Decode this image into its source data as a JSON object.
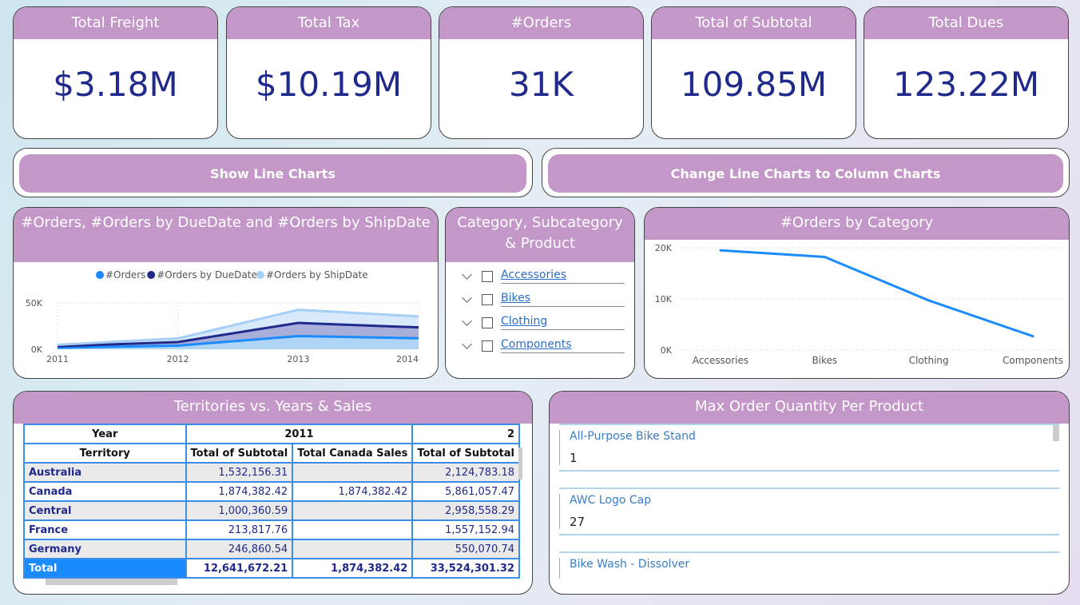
{
  "kpis": [
    {
      "label": "Total Freight",
      "value": "$3.18M"
    },
    {
      "label": "Total Tax",
      "value": "$10.19M"
    },
    {
      "label": "#Orders",
      "value": "31K"
    },
    {
      "label": "Total of Subtotal",
      "value": "109.85M"
    },
    {
      "label": "Total Dues",
      "value": "123.22M"
    }
  ],
  "buttons": {
    "show_line": "Show Line Charts",
    "change_line": "Change Line Charts to Column Charts"
  },
  "area_chart": {
    "title": "#Orders, #Orders by DueDate and #Orders by ShipDate"
  },
  "slicer": {
    "title": "Category, Subcategory & Product",
    "items": [
      "Accessories",
      "Bikes",
      "Clothing",
      "Components"
    ]
  },
  "category_chart": {
    "title": "#Orders by Category"
  },
  "chart_data": [
    {
      "type": "area",
      "stacked": true,
      "x": [
        "2011",
        "2012",
        "2013",
        "2014"
      ],
      "yticks": [
        "0K",
        "50K"
      ],
      "ylim": [
        0,
        55000
      ],
      "legend": "top",
      "series": [
        {
          "name": "#Orders",
          "color": "#1a8cff",
          "values": [
            1600,
            3900,
            14200,
            11800
          ]
        },
        {
          "name": "#Orders by DueDate",
          "color": "#1f2a8c",
          "values": [
            1600,
            3900,
            14200,
            11800
          ]
        },
        {
          "name": "#Orders by ShipDate",
          "color": "#a6cff5",
          "values": [
            1600,
            3900,
            14200,
            11800
          ]
        }
      ]
    },
    {
      "type": "line",
      "categories": [
        "Accessories",
        "Bikes",
        "Clothing",
        "Components"
      ],
      "values": [
        19500,
        18200,
        9700,
        2700
      ],
      "yticks": [
        "0K",
        "10K",
        "20K"
      ],
      "ylim": [
        0,
        20000
      ],
      "color": "#1a8cff"
    }
  ],
  "matrix": {
    "title": "Territories vs. Years & Sales",
    "year_label": "Year",
    "year": "2011",
    "year_next": "2",
    "territory_label": "Territory",
    "cols": [
      "Total of Subtotal",
      "Total Canada Sales",
      "Total of Subtotal"
    ],
    "rows": [
      {
        "t": "Australia",
        "v": [
          "1,532,156.31",
          "",
          "2,124,783.18"
        ]
      },
      {
        "t": "Canada",
        "v": [
          "1,874,382.42",
          "1,874,382.42",
          "5,861,057.47"
        ]
      },
      {
        "t": "Central",
        "v": [
          "1,000,360.59",
          "",
          "2,958,558.29"
        ]
      },
      {
        "t": "France",
        "v": [
          "213,817.76",
          "",
          "1,557,152.94"
        ]
      },
      {
        "t": "Germany",
        "v": [
          "246,860.54",
          "",
          "550,070.74"
        ]
      }
    ],
    "total": {
      "t": "Total",
      "v": [
        "12,641,672.21",
        "1,874,382.42",
        "33,524,301.32"
      ]
    }
  },
  "maxorder": {
    "title": "Max Order Quantity Per Product",
    "items": [
      {
        "name": "All-Purpose Bike Stand",
        "value": "1"
      },
      {
        "name": "AWC Logo Cap",
        "value": "27"
      },
      {
        "name": "Bike Wash - Dissolver"
      }
    ]
  }
}
